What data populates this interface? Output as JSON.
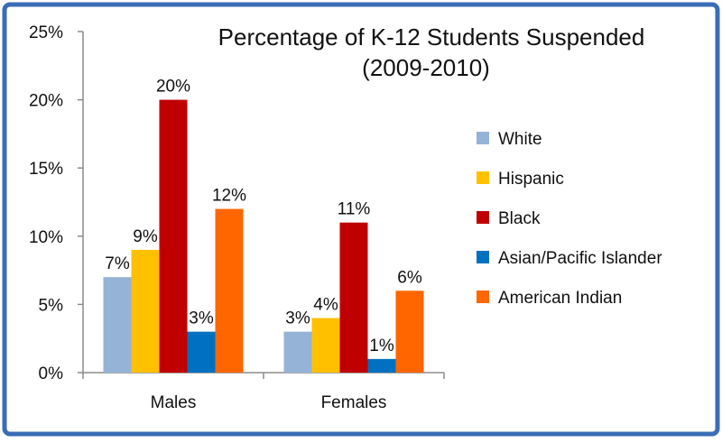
{
  "chart_data": {
    "type": "bar",
    "title_line1": "Percentage of K-12 Students Suspended",
    "title_line2": "(2009-2010)",
    "categories": [
      "Males",
      "Females"
    ],
    "series": [
      {
        "name": "White",
        "color": "#95B3D7",
        "values": [
          7,
          3
        ],
        "labels": [
          "7%",
          "3%"
        ]
      },
      {
        "name": "Hispanic",
        "color": "#FFC000",
        "values": [
          9,
          4
        ],
        "labels": [
          "9%",
          "4%"
        ]
      },
      {
        "name": "Black",
        "color": "#C00000",
        "values": [
          20,
          11
        ],
        "labels": [
          "20%",
          "11%"
        ]
      },
      {
        "name": "Asian/Pacific Islander",
        "color": "#0070C0",
        "values": [
          3,
          1
        ],
        "labels": [
          "3%",
          "1%"
        ]
      },
      {
        "name": "American Indian",
        "color": "#FF6600",
        "values": [
          12,
          6
        ],
        "labels": [
          "12%",
          "6%"
        ]
      }
    ],
    "y_ticks": [
      0,
      5,
      10,
      15,
      20,
      25
    ],
    "y_tick_labels": [
      "0%",
      "5%",
      "10%",
      "15%",
      "20%",
      "25%"
    ],
    "ylim": [
      0,
      25
    ],
    "grid": false,
    "legend_position": "right"
  },
  "colors": {
    "frame_border": "#3A6DB5",
    "axis": "#8C8C8C"
  }
}
